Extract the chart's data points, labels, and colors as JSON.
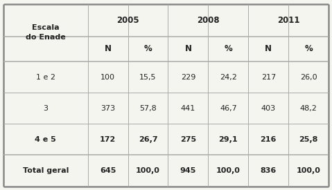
{
  "rows": [
    {
      "label": "1 e 2",
      "bold": false,
      "values": [
        "100",
        "15,5",
        "229",
        "24,2",
        "217",
        "26,0"
      ]
    },
    {
      "label": "3",
      "bold": false,
      "values": [
        "373",
        "57,8",
        "441",
        "46,7",
        "403",
        "48,2"
      ]
    },
    {
      "label": "4 e 5",
      "bold": true,
      "values": [
        "172",
        "26,7",
        "275",
        "29,1",
        "216",
        "25,8"
      ]
    },
    {
      "label": "Total geral",
      "bold": true,
      "values": [
        "645",
        "100,0",
        "945",
        "100,0",
        "836",
        "100,0"
      ]
    }
  ],
  "years": [
    "2005",
    "2008",
    "2011"
  ],
  "escala_label": "Escala\ndo Enade",
  "col_widths_rel": [
    1.85,
    0.88,
    0.88,
    0.88,
    0.88,
    0.88,
    0.88
  ],
  "background_color": "#f5f5f0",
  "line_color": "#aaaaaa",
  "thick_line_color": "#888888",
  "text_color": "#222222",
  "header_bg": "#ffffff"
}
